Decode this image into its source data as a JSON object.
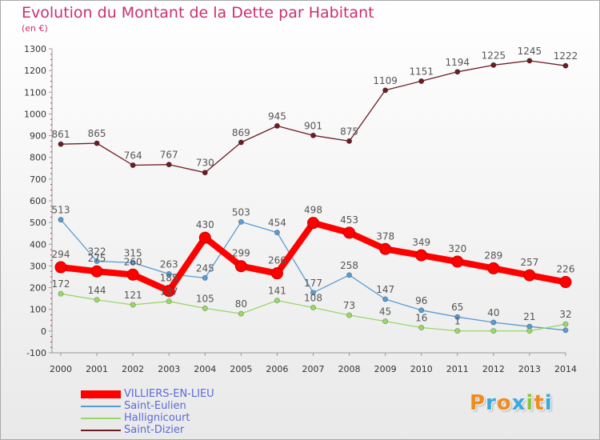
{
  "header": {
    "title": "Evolution du Montant de la Dette par Habitant",
    "subtitle": "(en €)"
  },
  "chart_data": {
    "type": "line",
    "x": [
      "2000",
      "2001",
      "2002",
      "2003",
      "2004",
      "2005",
      "2006",
      "2007",
      "2008",
      "2009",
      "2010",
      "2011",
      "2012",
      "2013",
      "2014"
    ],
    "ylim": [
      -100,
      1300
    ],
    "yticks": [
      -100,
      0,
      100,
      200,
      300,
      400,
      500,
      600,
      700,
      800,
      900,
      1000,
      1100,
      1200,
      1300
    ],
    "grid": false,
    "legend_position": "bottom-left",
    "series": [
      {
        "name": "Saint-Dizier",
        "color": "#6b1d24",
        "values": [
          861,
          865,
          764,
          767,
          730,
          869,
          945,
          901,
          875,
          1109,
          1151,
          1194,
          1225,
          1245,
          1222
        ],
        "labels": [
          "861",
          "865",
          "764",
          "767",
          "730",
          "869",
          "945",
          "901",
          "875",
          "1109",
          "1151",
          "1194",
          "1225",
          "1245",
          "1222"
        ]
      },
      {
        "name": "Saint-Eulien",
        "color": "#5b9bd0",
        "values": [
          513,
          322,
          315,
          263,
          245,
          503,
          454,
          177,
          258,
          147,
          96,
          65,
          40,
          21,
          4
        ],
        "labels": [
          "513",
          "322",
          "315",
          "263",
          "245",
          "503",
          "454",
          "177",
          "258",
          "147",
          "96",
          "65",
          "40",
          "21",
          ""
        ]
      },
      {
        "name": "Hallignicourt",
        "color": "#99d66a",
        "values": [
          172,
          144,
          121,
          137,
          105,
          80,
          141,
          108,
          73,
          45,
          16,
          1,
          1,
          1,
          32
        ],
        "labels": [
          "172",
          "144",
          "121",
          "137",
          "105",
          "80",
          "141",
          "108",
          "73",
          "45",
          "16",
          "1",
          "",
          "",
          "32"
        ]
      },
      {
        "name": "VILLIERS-EN-LIEU",
        "color": "#ff0000",
        "values": [
          294,
          275,
          260,
          185,
          430,
          299,
          266,
          498,
          453,
          378,
          349,
          320,
          289,
          257,
          226
        ],
        "labels": [
          "294",
          "275",
          "260",
          "185",
          "430",
          "299",
          "266",
          "498",
          "453",
          "378",
          "349",
          "320",
          "289",
          "257",
          "226"
        ]
      }
    ]
  },
  "legend": {
    "items": [
      {
        "label": "VILLIERS-EN-LIEU",
        "color": "#ff0000",
        "text_color": "#5a6bd8",
        "width": 10
      },
      {
        "label": "Saint-Eulien",
        "color": "#5b9bd0",
        "text_color": "#5a6bd8",
        "width": 2
      },
      {
        "label": "Hallignicourt",
        "color": "#99d66a",
        "text_color": "#5a6bd8",
        "width": 2
      },
      {
        "label": "Saint-Dizier",
        "color": "#6b1d24",
        "text_color": "#5a6bd8",
        "width": 2
      }
    ]
  },
  "logo": {
    "letters": [
      {
        "ch": "P",
        "color": "#f08c1e"
      },
      {
        "ch": "r",
        "color": "#3aa9de"
      },
      {
        "ch": "o",
        "color": "#f08c1e"
      },
      {
        "ch": "x",
        "color": "#3aa9de"
      },
      {
        "ch": "i",
        "color": "#8cc63f"
      },
      {
        "ch": "t",
        "color": "#f08c1e"
      },
      {
        "ch": "i",
        "color": "#3aa9de"
      }
    ]
  }
}
